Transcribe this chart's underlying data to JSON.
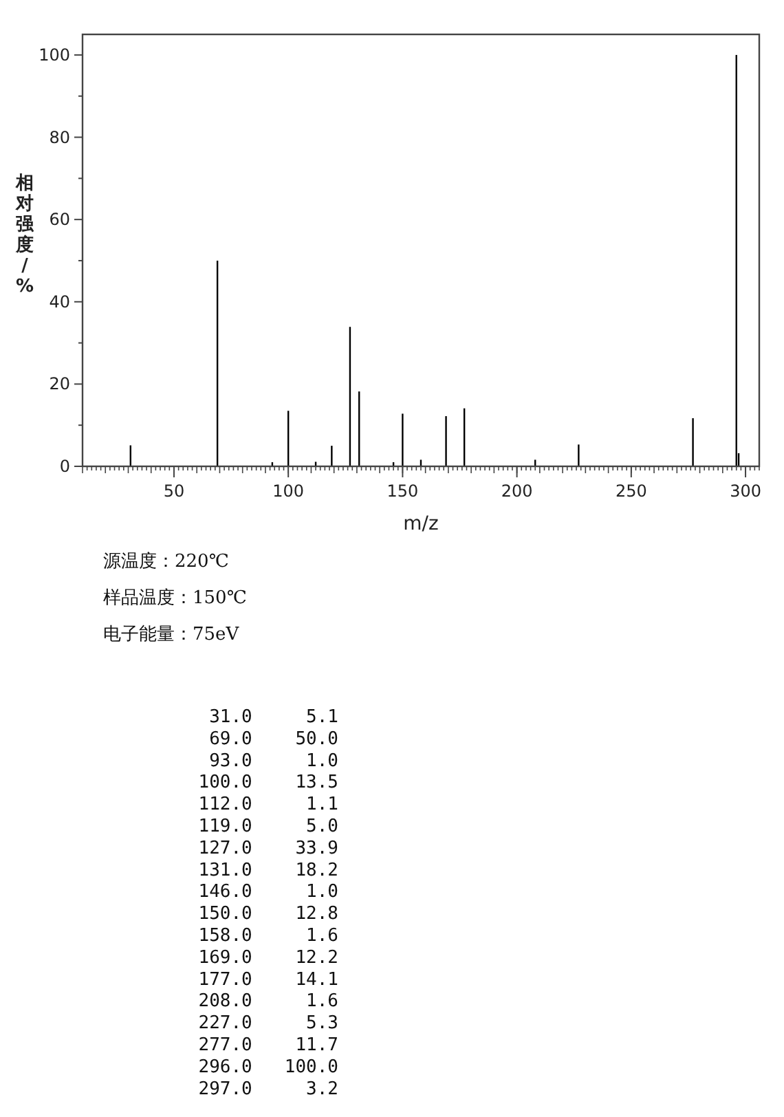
{
  "chart_data": [
    {
      "type": "bar",
      "xlabel": "m/z",
      "ylabel": "相对强度/%",
      "color": "#000000",
      "x": [
        31,
        69,
        93,
        100,
        112,
        119,
        127,
        131,
        146,
        150,
        158,
        169,
        177,
        208,
        227,
        277,
        296,
        297
      ],
      "values": [
        5.1,
        50.0,
        1.0,
        13.5,
        1.1,
        5.0,
        33.9,
        18.2,
        1.0,
        12.8,
        1.6,
        12.2,
        14.1,
        1.6,
        5.3,
        11.7,
        100.0,
        3.2
      ],
      "xlim": [
        10,
        306
      ],
      "ylim": [
        0,
        105
      ],
      "xticks": [
        50,
        100,
        150,
        200,
        250,
        300
      ],
      "yticks": [
        0,
        20,
        40,
        60,
        80,
        100
      ],
      "annotations": [
        "源温度：220℃",
        "样品温度：150℃",
        "电子能量：75eV"
      ]
    },
    {
      "type": "other",
      "annotations": [
        "31.0     5.1",
        "69.0    50.0",
        "93.0     1.0",
        "100.0    13.5",
        "112.0     1.1",
        "119.0     5.0",
        "127.0    33.9",
        "131.0    18.2",
        "146.0     1.0",
        "150.0    12.8",
        "158.0     1.6",
        "169.0    12.2",
        "177.0    14.1",
        "208.0     1.6",
        "227.0     5.3",
        "277.0    11.7",
        "296.0   100.0",
        "297.0     3.2"
      ]
    }
  ]
}
